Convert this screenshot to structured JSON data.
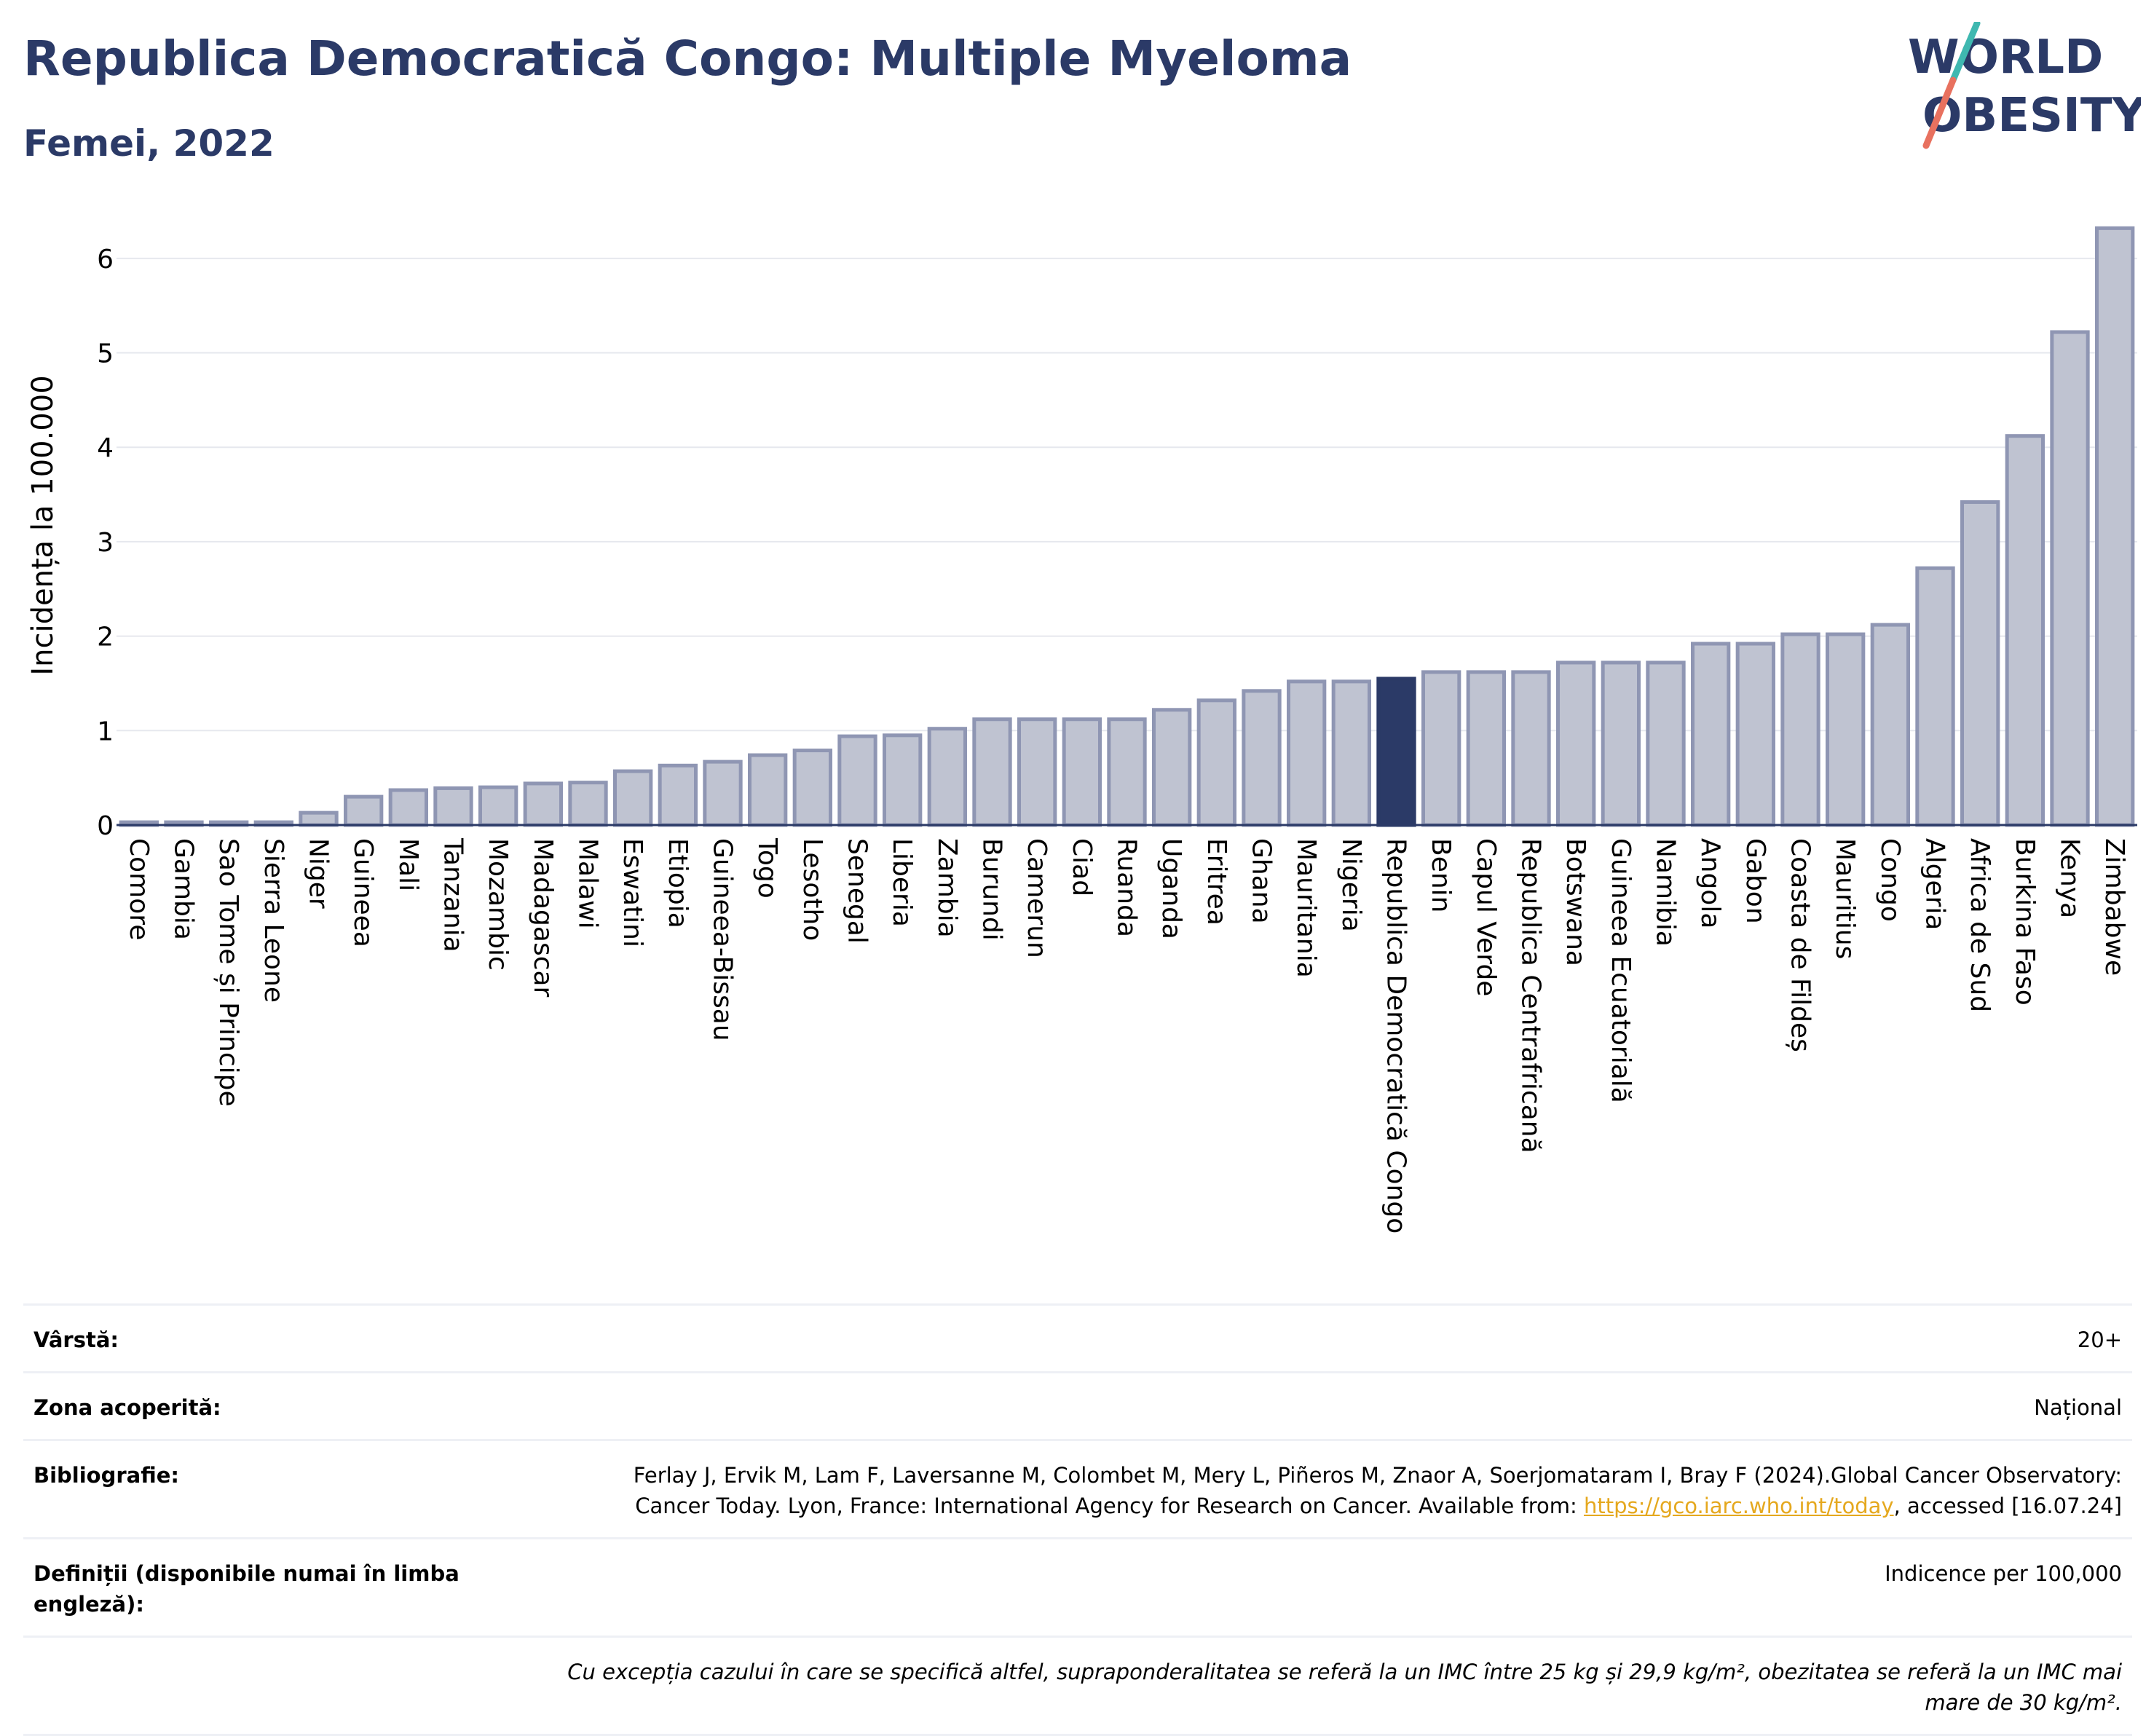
{
  "header": {
    "title": "Republica Democratică Congo: Multiple Myeloma",
    "subtitle": "Femei, 2022"
  },
  "logo": {
    "line1": "WORLD",
    "line2": "OBESITY"
  },
  "colors": {
    "bar": "#bfc3d1",
    "bar_border": "#8f96b3",
    "highlight": "#2b3a67",
    "text": "#2b3a67",
    "grid": "#e6e8ee",
    "link": "#e5a81e"
  },
  "chart_data": {
    "type": "bar",
    "ylabel": "Incidența la 100.000",
    "ylim": [
      0,
      6.5
    ],
    "yticks": [
      0,
      1,
      2,
      3,
      4,
      5,
      6
    ],
    "grid": true,
    "highlight": "Republica Democratică Congo",
    "categories": [
      "Comore",
      "Gambia",
      "Sao Tome și Principe",
      "Sierra Leone",
      "Niger",
      "Guineea",
      "Mali",
      "Tanzania",
      "Mozambic",
      "Madagascar",
      "Malawi",
      "Eswatini",
      "Etiopia",
      "Guineea-Bissau",
      "Togo",
      "Lesotho",
      "Senegal",
      "Liberia",
      "Zambia",
      "Burundi",
      "Camerun",
      "Ciad",
      "Ruanda",
      "Uganda",
      "Eritrea",
      "Ghana",
      "Mauritania",
      "Nigeria",
      "Republica Democratică Congo",
      "Benin",
      "Capul Verde",
      "Republica Centrafricană",
      "Botswana",
      "Guineea Ecuatorială",
      "Namibia",
      "Angola",
      "Gabon",
      "Coasta de Fildeș",
      "Mauritius",
      "Congo",
      "Algeria",
      "Africa de Sud",
      "Burkina Faso",
      "Kenya",
      "Zimbabwe"
    ],
    "values": [
      0.03,
      0.03,
      0.03,
      0.03,
      0.13,
      0.3,
      0.37,
      0.39,
      0.4,
      0.44,
      0.45,
      0.57,
      0.63,
      0.67,
      0.74,
      0.79,
      0.94,
      0.95,
      1.02,
      1.12,
      1.12,
      1.12,
      1.12,
      1.22,
      1.32,
      1.42,
      1.52,
      1.52,
      1.55,
      1.62,
      1.62,
      1.62,
      1.72,
      1.72,
      1.72,
      1.92,
      1.92,
      2.02,
      2.02,
      2.12,
      2.72,
      3.42,
      4.12,
      5.22,
      6.32
    ]
  },
  "info": {
    "age_label": "Vârstă:",
    "age_value": "20+",
    "zone_label": "Zona acoperită:",
    "zone_value": "Național",
    "biblio_label": "Bibliografie:",
    "biblio_text": "Ferlay J, Ervik M, Lam F, Laversanne M, Colombet M, Mery L, Piñeros M, Znaor A, Soerjomataram I, Bray F (2024).Global Cancer Observatory: Cancer Today. Lyon, France: International Agency for Research on Cancer. Available from:",
    "biblio_link": "https://gco.iarc.who.int/today",
    "biblio_after": ", accessed [16.07.24]",
    "def_label": "Definiții (disponibile numai în limba engleză):",
    "def_value": "Indicence per 100,000",
    "note": "Cu excepția cazului în care se specifică altfel, supraponderalitatea se referă la un IMC între 25 kg și 29,9 kg/m², obezitatea se referă la un IMC mai mare de 30 kg/m²."
  }
}
